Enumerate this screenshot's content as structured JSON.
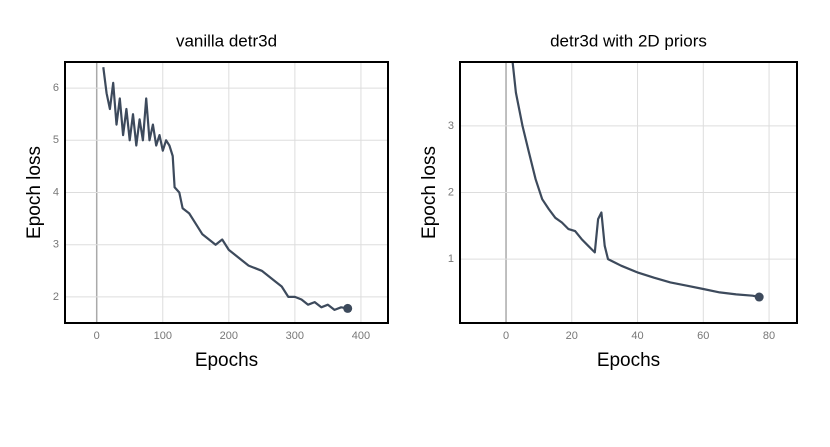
{
  "chart_data": [
    {
      "type": "line",
      "title": "vanilla detr3d",
      "xlabel": "Epochs",
      "ylabel": "Epoch loss",
      "xlim": [
        -48,
        441
      ],
      "ylim": [
        1.5,
        6.5
      ],
      "xticks": [
        0,
        100,
        200,
        300,
        400
      ],
      "yticks": [
        2,
        3,
        4,
        5,
        6
      ],
      "grid": true,
      "series": [
        {
          "color": "#3d4a5c",
          "x": [
            10,
            15,
            20,
            25,
            30,
            35,
            40,
            45,
            50,
            55,
            60,
            65,
            70,
            75,
            80,
            85,
            90,
            95,
            100,
            105,
            110,
            115,
            118,
            125,
            130,
            140,
            150,
            160,
            170,
            180,
            190,
            200,
            210,
            220,
            230,
            240,
            250,
            260,
            270,
            280,
            290,
            300,
            310,
            320,
            330,
            340,
            350,
            360,
            370,
            380
          ],
          "values": [
            6.4,
            5.9,
            5.6,
            6.1,
            5.3,
            5.8,
            5.1,
            5.6,
            5.0,
            5.5,
            4.9,
            5.4,
            5.0,
            5.8,
            5.0,
            5.3,
            4.9,
            5.1,
            4.8,
            5.0,
            4.9,
            4.7,
            4.1,
            4.0,
            3.7,
            3.6,
            3.4,
            3.2,
            3.1,
            3.0,
            3.1,
            2.9,
            2.8,
            2.7,
            2.6,
            2.55,
            2.5,
            2.4,
            2.3,
            2.2,
            2.0,
            2.0,
            1.95,
            1.85,
            1.9,
            1.8,
            1.85,
            1.75,
            1.8,
            1.78
          ]
        }
      ]
    },
    {
      "type": "line",
      "title": "detr3d with 2D priors",
      "xlabel": "Epochs",
      "ylabel": "Epoch loss",
      "xlim": [
        -14,
        88.5
      ],
      "ylim": [
        0.04,
        3.96
      ],
      "xticks": [
        0,
        20,
        40,
        60,
        80
      ],
      "yticks": [
        1,
        2,
        3
      ],
      "grid": true,
      "series": [
        {
          "color": "#3d4a5c",
          "x": [
            2,
            3,
            5,
            7,
            9,
            11,
            13,
            15,
            17,
            19,
            21,
            23,
            25,
            26,
            27,
            28,
            29,
            30,
            31,
            33,
            35,
            40,
            45,
            50,
            55,
            60,
            65,
            70,
            75,
            77
          ],
          "values": [
            3.96,
            3.5,
            3.0,
            2.6,
            2.2,
            1.9,
            1.75,
            1.62,
            1.55,
            1.45,
            1.42,
            1.3,
            1.2,
            1.15,
            1.1,
            1.6,
            1.7,
            1.2,
            1.0,
            0.95,
            0.9,
            0.8,
            0.72,
            0.65,
            0.6,
            0.55,
            0.5,
            0.47,
            0.45,
            0.43
          ]
        }
      ]
    }
  ]
}
